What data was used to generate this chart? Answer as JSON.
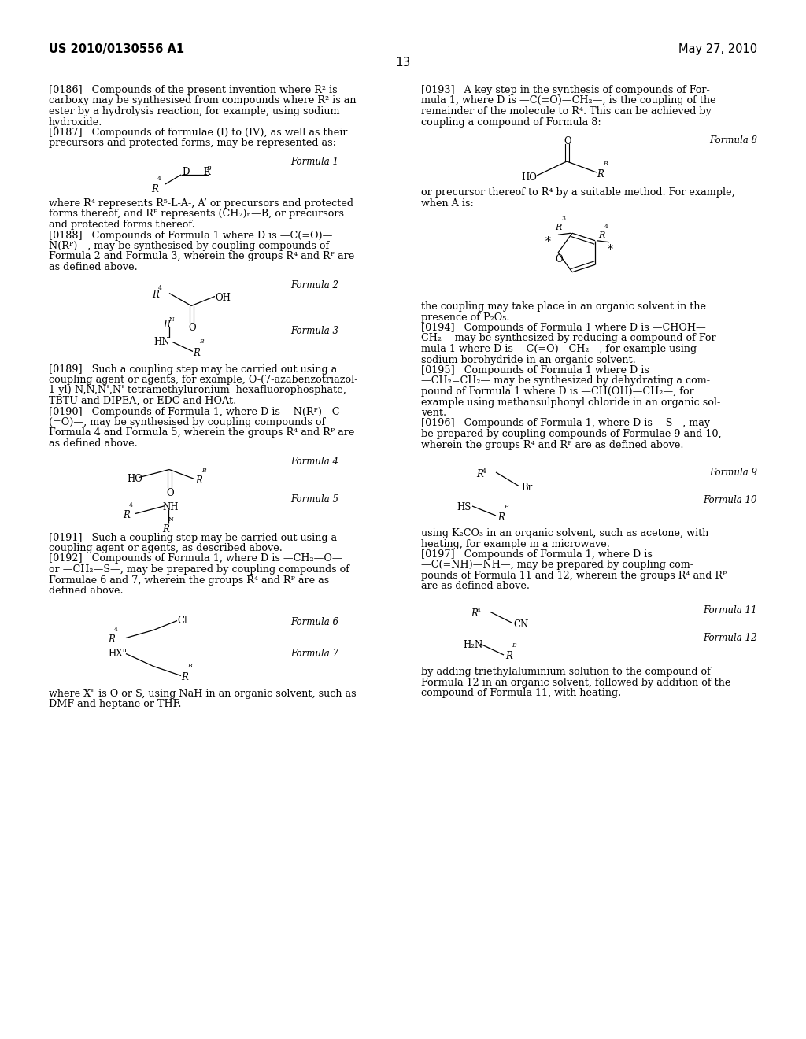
{
  "bg": "#ffffff",
  "header_left": "US 2010/0130556 A1",
  "header_right": "May 27, 2010",
  "page_num": "13"
}
